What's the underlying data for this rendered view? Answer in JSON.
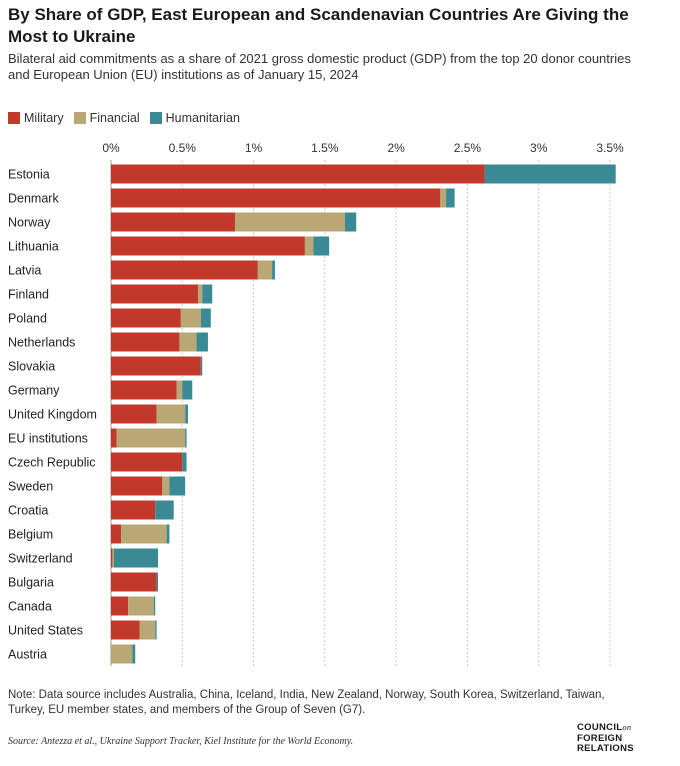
{
  "header": {
    "title": "By Share of GDP, East European and Scandenavian Countries Are Giving the Most to Ukraine",
    "subtitle": "Bilateral aid commitments as a share of 2021 gross domestic product (GDP) from the top 20 donor countries and European Union (EU) institutions as of January 15, 2024"
  },
  "legend": {
    "items": [
      {
        "label": "Military",
        "color": "#c0392b"
      },
      {
        "label": "Financial",
        "color": "#b9a775"
      },
      {
        "label": "Humanitarian",
        "color": "#3a8a96"
      }
    ]
  },
  "chart_data": {
    "type": "bar",
    "orientation": "horizontal",
    "stacked": true,
    "title": "",
    "xlabel": "",
    "ylabel": "",
    "xlim": [
      0,
      3.5
    ],
    "ticks": [
      0,
      0.5,
      1,
      1.5,
      2,
      2.5,
      3,
      3.5
    ],
    "tick_labels": [
      "0%",
      "0.5%",
      "1%",
      "1.5%",
      "2%",
      "2.5%",
      "3%",
      "3.5%"
    ],
    "grid": true,
    "legend_position": "top-left",
    "categories": [
      "Estonia",
      "Denmark",
      "Norway",
      "Lithuania",
      "Latvia",
      "Finland",
      "Poland",
      "Netherlands",
      "Slovakia",
      "Germany",
      "United Kingdom",
      "EU institutions",
      "Czech Republic",
      "Sweden",
      "Croatia",
      "Belgium",
      "Switzerland",
      "Bulgaria",
      "Canada",
      "United States",
      "Austria"
    ],
    "series": [
      {
        "name": "Military",
        "color": "#c0392b",
        "values": [
          2.62,
          2.31,
          0.87,
          1.36,
          1.03,
          0.61,
          0.49,
          0.48,
          0.63,
          0.46,
          0.32,
          0.04,
          0.5,
          0.36,
          0.31,
          0.07,
          0.01,
          0.32,
          0.12,
          0.2,
          0.0
        ]
      },
      {
        "name": "Financial",
        "color": "#b9a775",
        "values": [
          0.0,
          0.04,
          0.77,
          0.06,
          0.1,
          0.03,
          0.14,
          0.12,
          0.0,
          0.04,
          0.2,
          0.48,
          0.0,
          0.05,
          0.0,
          0.32,
          0.01,
          0.0,
          0.18,
          0.11,
          0.15
        ]
      },
      {
        "name": "Humanitarian",
        "color": "#3a8a96",
        "values": [
          0.92,
          0.06,
          0.08,
          0.11,
          0.02,
          0.07,
          0.07,
          0.08,
          0.01,
          0.07,
          0.02,
          0.01,
          0.03,
          0.11,
          0.13,
          0.02,
          0.31,
          0.01,
          0.01,
          0.01,
          0.02
        ]
      }
    ]
  },
  "footer": {
    "note": "Note: Data source includes Australia, China, Iceland, India, New Zealand, Norway, South Korea, Switzerland, Taiwan, Turkey, EU member states, and members of the Group of Seven (G7).",
    "source_label": "Source:",
    "source_text": "Antezza et al., Ukraine Support Tracker, Kiel Institute for the World Economy.",
    "logo": {
      "line1": "COUNCIL",
      "line1_small": "on",
      "line2": "FOREIGN",
      "line3": "RELATIONS"
    }
  }
}
